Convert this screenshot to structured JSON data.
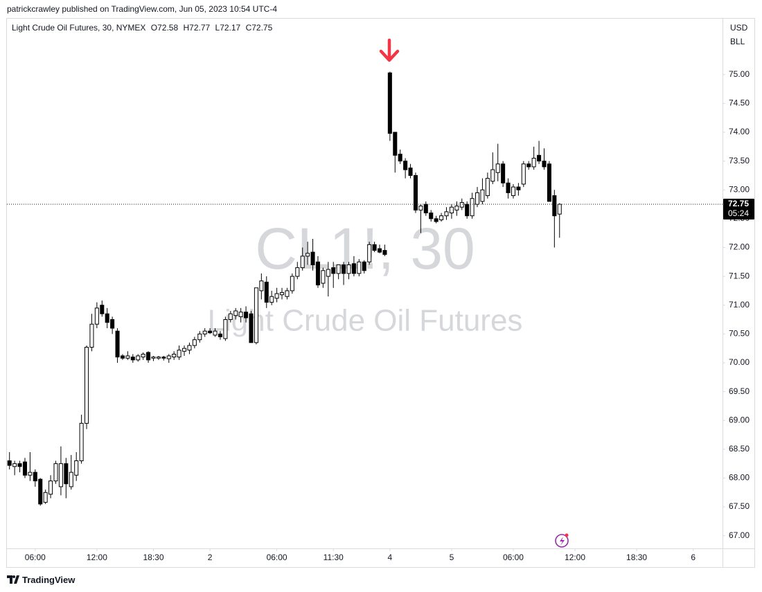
{
  "header": {
    "published": "patrickcrawley published on TradingView.com, Jun 05, 2023 10:54 UTC-4",
    "symbol": "Light Crude Oil Futures, 30, NYMEX",
    "ohlc": [
      "O72.58",
      "H72.77",
      "L72.17",
      "C72.75"
    ],
    "currency": "USD",
    "unit": "BLL"
  },
  "watermark": {
    "ticker": "CL1!, 30",
    "name": "Light Crude Oil Futures"
  },
  "footer": {
    "brand": "TradingView"
  },
  "chart_data": {
    "type": "candlestick",
    "up_color": "#ffffff",
    "down_color": "#000000",
    "outline_color": "#000000",
    "open": [
      68.3,
      68.2,
      68.25,
      68.28,
      68.05,
      68.1,
      67.98,
      67.58,
      67.72,
      67.95,
      67.85,
      68.25,
      67.85,
      68.05,
      68.3,
      68.95,
      70.27,
      70.67,
      71.0,
      70.85,
      70.75,
      70.55,
      70.12,
      70.08,
      70.1,
      70.05,
      70.1,
      70.18,
      70.08,
      70.08,
      70.1,
      70.07,
      70.1,
      70.1,
      70.2,
      70.22,
      70.3,
      70.4,
      70.5,
      70.55,
      70.48,
      70.5,
      70.42,
      70.75,
      70.82,
      70.8,
      70.88,
      70.85,
      70.35,
      71.25,
      71.4,
      71.05,
      71.12,
      71.18,
      71.15,
      71.25,
      71.5,
      71.65,
      71.85,
      71.92,
      71.75,
      71.38,
      71.5,
      71.65,
      71.55,
      71.7,
      71.55,
      71.72,
      71.55,
      71.75,
      71.75,
      72.05,
      71.98,
      71.95,
      75.03,
      74.0,
      73.62,
      73.5,
      73.38,
      73.25,
      72.65,
      72.75,
      72.6,
      72.5,
      72.48,
      72.55,
      72.6,
      72.65,
      72.7,
      72.75,
      72.55,
      72.75,
      72.8,
      72.9,
      73.15,
      73.3,
      73.45,
      73.12,
      72.9,
      73.05,
      73.1,
      73.45,
      73.4,
      73.6,
      73.5,
      73.45,
      72.9,
      72.58
    ],
    "high": [
      68.45,
      68.3,
      68.3,
      68.35,
      68.45,
      68.15,
      68.0,
      67.8,
      68.05,
      68.3,
      68.55,
      68.35,
      68.4,
      68.45,
      69.1,
      70.3,
      70.85,
      71.05,
      71.08,
      70.95,
      70.8,
      70.6,
      70.15,
      70.2,
      70.15,
      70.15,
      70.18,
      70.2,
      70.12,
      70.12,
      70.12,
      70.15,
      70.2,
      70.3,
      70.3,
      70.35,
      70.45,
      70.55,
      70.6,
      70.6,
      70.6,
      70.55,
      70.8,
      70.9,
      70.95,
      70.95,
      70.98,
      70.9,
      71.3,
      71.55,
      71.5,
      71.25,
      71.3,
      71.3,
      71.3,
      71.55,
      71.75,
      72.0,
      72.1,
      72.15,
      71.85,
      71.65,
      71.75,
      71.75,
      71.7,
      71.75,
      71.75,
      71.85,
      71.8,
      71.78,
      72.1,
      72.1,
      72.05,
      72.05,
      75.05,
      74.0,
      73.7,
      73.55,
      73.45,
      73.3,
      72.75,
      72.8,
      72.65,
      72.55,
      72.6,
      72.7,
      72.75,
      72.8,
      72.85,
      72.8,
      72.95,
      73.05,
      73.2,
      73.3,
      73.65,
      73.8,
      73.5,
      73.2,
      73.1,
      73.12,
      73.5,
      73.5,
      73.75,
      73.85,
      73.72,
      73.5,
      73.0,
      72.77
    ],
    "low": [
      68.15,
      68.05,
      68.1,
      68.0,
      67.95,
      67.85,
      67.52,
      67.55,
      67.65,
      67.9,
      67.7,
      67.65,
      67.8,
      67.95,
      68.25,
      68.85,
      70.2,
      70.6,
      70.8,
      70.6,
      70.5,
      70.0,
      70.05,
      70.05,
      70.0,
      70.02,
      70.05,
      70.0,
      70.03,
      70.05,
      70.04,
      70.0,
      70.05,
      70.05,
      70.12,
      70.15,
      70.25,
      70.35,
      70.45,
      70.5,
      70.45,
      70.4,
      70.38,
      70.7,
      70.75,
      70.7,
      70.7,
      70.35,
      70.32,
      71.1,
      70.95,
      71.0,
      71.05,
      71.1,
      71.1,
      71.2,
      71.45,
      71.6,
      71.7,
      71.6,
      71.3,
      71.3,
      71.15,
      71.3,
      71.45,
      71.35,
      71.45,
      71.5,
      71.5,
      71.55,
      71.7,
      71.92,
      71.9,
      71.85,
      73.85,
      73.3,
      73.45,
      73.2,
      73.2,
      72.6,
      72.25,
      72.55,
      72.45,
      72.42,
      72.45,
      72.48,
      72.5,
      72.55,
      72.65,
      72.5,
      72.5,
      72.7,
      72.75,
      72.85,
      73.1,
      73.15,
      73.05,
      72.85,
      72.85,
      72.9,
      73.05,
      73.35,
      73.35,
      73.45,
      73.35,
      72.8,
      72.0,
      72.17
    ],
    "close": [
      68.22,
      68.25,
      68.2,
      68.05,
      68.1,
      67.95,
      67.55,
      67.75,
      67.95,
      68.25,
      68.25,
      67.9,
      68.1,
      68.3,
      68.95,
      70.27,
      70.67,
      70.95,
      70.85,
      70.7,
      70.6,
      70.1,
      70.08,
      70.12,
      70.05,
      70.12,
      70.15,
      70.05,
      70.1,
      70.1,
      70.08,
      70.12,
      70.15,
      70.22,
      70.25,
      70.3,
      70.4,
      70.5,
      70.55,
      70.52,
      70.55,
      70.45,
      70.75,
      70.85,
      70.9,
      70.88,
      70.78,
      70.35,
      71.3,
      71.42,
      71.05,
      71.15,
      71.2,
      71.22,
      71.25,
      71.5,
      71.65,
      71.85,
      71.9,
      71.7,
      71.35,
      71.6,
      71.62,
      71.55,
      71.7,
      71.55,
      71.7,
      71.55,
      71.75,
      71.6,
      72.05,
      71.95,
      71.92,
      71.88,
      73.98,
      73.6,
      73.5,
      73.35,
      73.25,
      72.65,
      72.72,
      72.6,
      72.5,
      72.45,
      72.55,
      72.62,
      72.7,
      72.72,
      72.78,
      72.55,
      72.85,
      72.95,
      73.0,
      73.2,
      73.35,
      73.45,
      73.12,
      72.95,
      73.05,
      73.0,
      73.45,
      73.4,
      73.55,
      73.5,
      73.4,
      72.8,
      72.55,
      72.75
    ],
    "xlim": [
      -0.5,
      138.7
    ],
    "xticks": [
      {
        "value": 5,
        "label": "06:00"
      },
      {
        "value": 17,
        "label": "12:00"
      },
      {
        "value": 28,
        "label": "18:30"
      },
      {
        "value": 39,
        "label": "2"
      },
      {
        "value": 52,
        "label": "06:00"
      },
      {
        "value": 63,
        "label": "11:30"
      },
      {
        "value": 74,
        "label": "4"
      },
      {
        "value": 86,
        "label": "5"
      },
      {
        "value": 98,
        "label": "06:00"
      },
      {
        "value": 110,
        "label": "12:00"
      },
      {
        "value": 122,
        "label": "18:30"
      },
      {
        "value": 133,
        "label": "6"
      }
    ],
    "ylim": [
      66.78,
      75.97
    ],
    "yticks": [
      {
        "value": 67,
        "label": "67.00"
      },
      {
        "value": 67.5,
        "label": "67.50"
      },
      {
        "value": 68,
        "label": "68.00"
      },
      {
        "value": 68.5,
        "label": "68.50"
      },
      {
        "value": 69,
        "label": "69.00"
      },
      {
        "value": 69.5,
        "label": "69.50"
      },
      {
        "value": 70,
        "label": "70.00"
      },
      {
        "value": 70.5,
        "label": "70.50"
      },
      {
        "value": 71,
        "label": "71.00"
      },
      {
        "value": 71.5,
        "label": "71.50"
      },
      {
        "value": 72,
        "label": "72.00"
      },
      {
        "value": 72.5,
        "label": "72.50"
      },
      {
        "value": 73,
        "label": "73.00"
      },
      {
        "value": 73.5,
        "label": "73.50"
      },
      {
        "value": 74,
        "label": "74.00"
      },
      {
        "value": 74.5,
        "label": "74.50"
      },
      {
        "value": 75,
        "label": "75.00"
      }
    ],
    "last_price": {
      "value": 72.75,
      "label": "72.75"
    },
    "countdown": "05:24",
    "grid": false
  }
}
